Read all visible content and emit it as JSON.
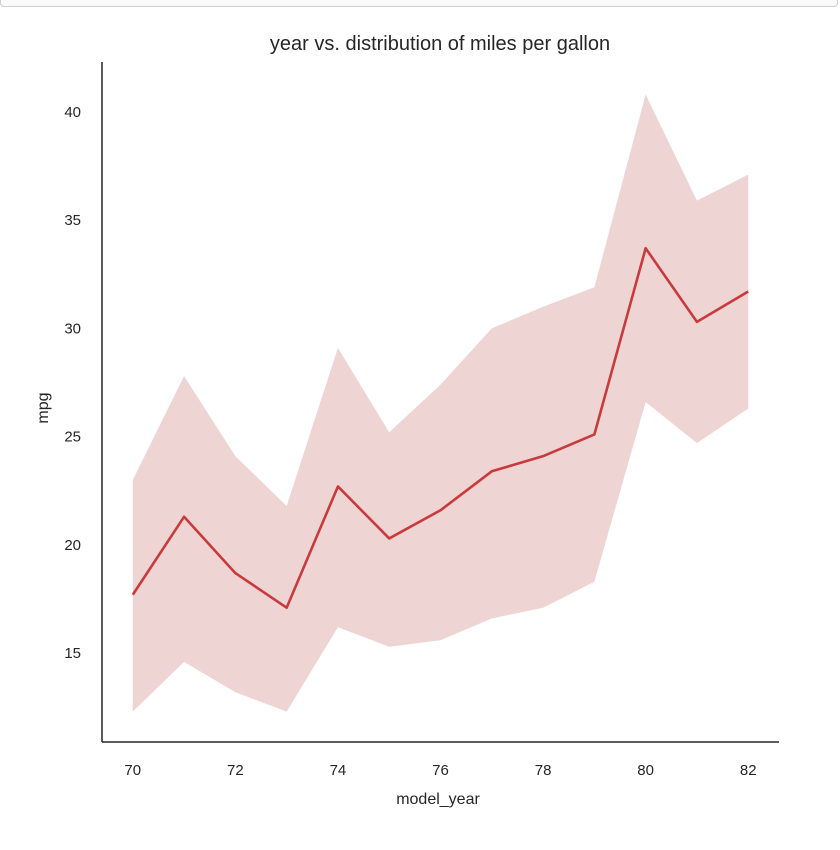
{
  "chart_data": {
    "type": "line",
    "title": "year vs. distribution of miles per gallon",
    "xlabel": "model_year",
    "ylabel": "mpg",
    "x": [
      70,
      71,
      72,
      73,
      74,
      75,
      76,
      77,
      78,
      79,
      80,
      81,
      82
    ],
    "series": [
      {
        "values": [
          17.7,
          21.3,
          18.7,
          17.1,
          22.7,
          20.3,
          21.6,
          23.4,
          24.1,
          25.1,
          33.7,
          30.3,
          31.7
        ],
        "ci_lower": [
          12.3,
          14.6,
          13.2,
          12.3,
          16.2,
          15.3,
          15.6,
          16.6,
          17.1,
          18.3,
          26.6,
          24.7,
          26.3
        ],
        "ci_upper": [
          23.0,
          27.8,
          24.1,
          21.8,
          29.1,
          25.2,
          27.4,
          30.0,
          31.0,
          31.9,
          40.8,
          35.9,
          37.1
        ],
        "color": "#c93a3c",
        "band_color": "#efd4d4"
      }
    ],
    "xticks": [
      70,
      72,
      74,
      76,
      78,
      80,
      82
    ],
    "yticks": [
      15,
      20,
      25,
      30,
      35,
      40
    ],
    "xlim": [
      69.4,
      82.6
    ],
    "ylim": [
      10.9,
      42.3
    ],
    "grid": false,
    "legend": "none"
  }
}
